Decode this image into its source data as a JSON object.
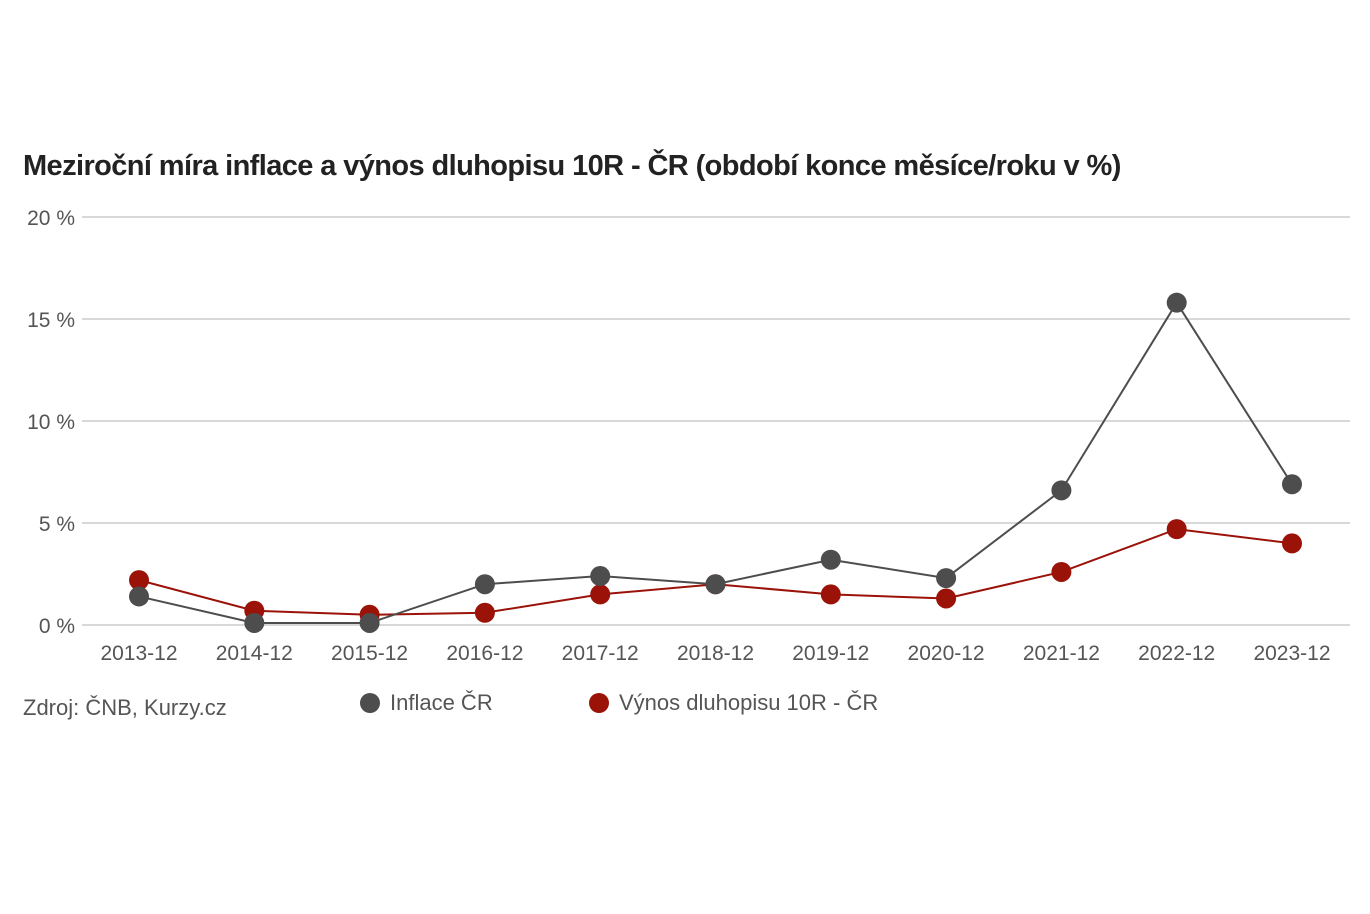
{
  "title": "Meziroční míra inflace a výnos dluhopisu 10R - ČR (období konce měsíce/roku v %)",
  "source": "Zdroj: ČNB, Kurzy.cz",
  "legend": [
    {
      "label": "Inflace ČR",
      "color": "#4d4d4d"
    },
    {
      "label": "Výnos dluhopisu 10R - ČR",
      "color": "#9b1209"
    }
  ],
  "y_axis": {
    "ticks": [
      "0 %",
      "5 %",
      "10 %",
      "15 %",
      "20 %"
    ]
  },
  "x_axis": {
    "ticks": [
      "2013-12",
      "2014-12",
      "2015-12",
      "2016-12",
      "2017-12",
      "2018-12",
      "2019-12",
      "2020-12",
      "2021-12",
      "2022-12",
      "2023-12"
    ]
  },
  "chart_data": {
    "type": "line",
    "title": "Meziroční míra inflace a výnos dluhopisu 10R - ČR (období konce měsíce/roku v %)",
    "xlabel": "",
    "ylabel": "",
    "categories": [
      "2013-12",
      "2014-12",
      "2015-12",
      "2016-12",
      "2017-12",
      "2018-12",
      "2019-12",
      "2020-12",
      "2021-12",
      "2022-12",
      "2023-12"
    ],
    "series": [
      {
        "name": "Inflace ČR",
        "color": "#4d4d4d",
        "values": [
          1.4,
          0.1,
          0.1,
          2.0,
          2.4,
          2.0,
          3.2,
          2.3,
          6.6,
          15.8,
          6.9
        ]
      },
      {
        "name": "Výnos dluhopisu 10R - ČR",
        "color": "#9b1209",
        "values": [
          2.2,
          0.7,
          0.5,
          0.6,
          1.5,
          2.0,
          1.5,
          1.3,
          2.6,
          4.7,
          4.0
        ]
      }
    ],
    "ylim": [
      0,
      20
    ],
    "yticks": [
      0,
      5,
      10,
      15,
      20
    ],
    "grid": "horizontal",
    "legend_position": "bottom",
    "source": "Zdroj: ČNB, Kurzy.cz"
  }
}
